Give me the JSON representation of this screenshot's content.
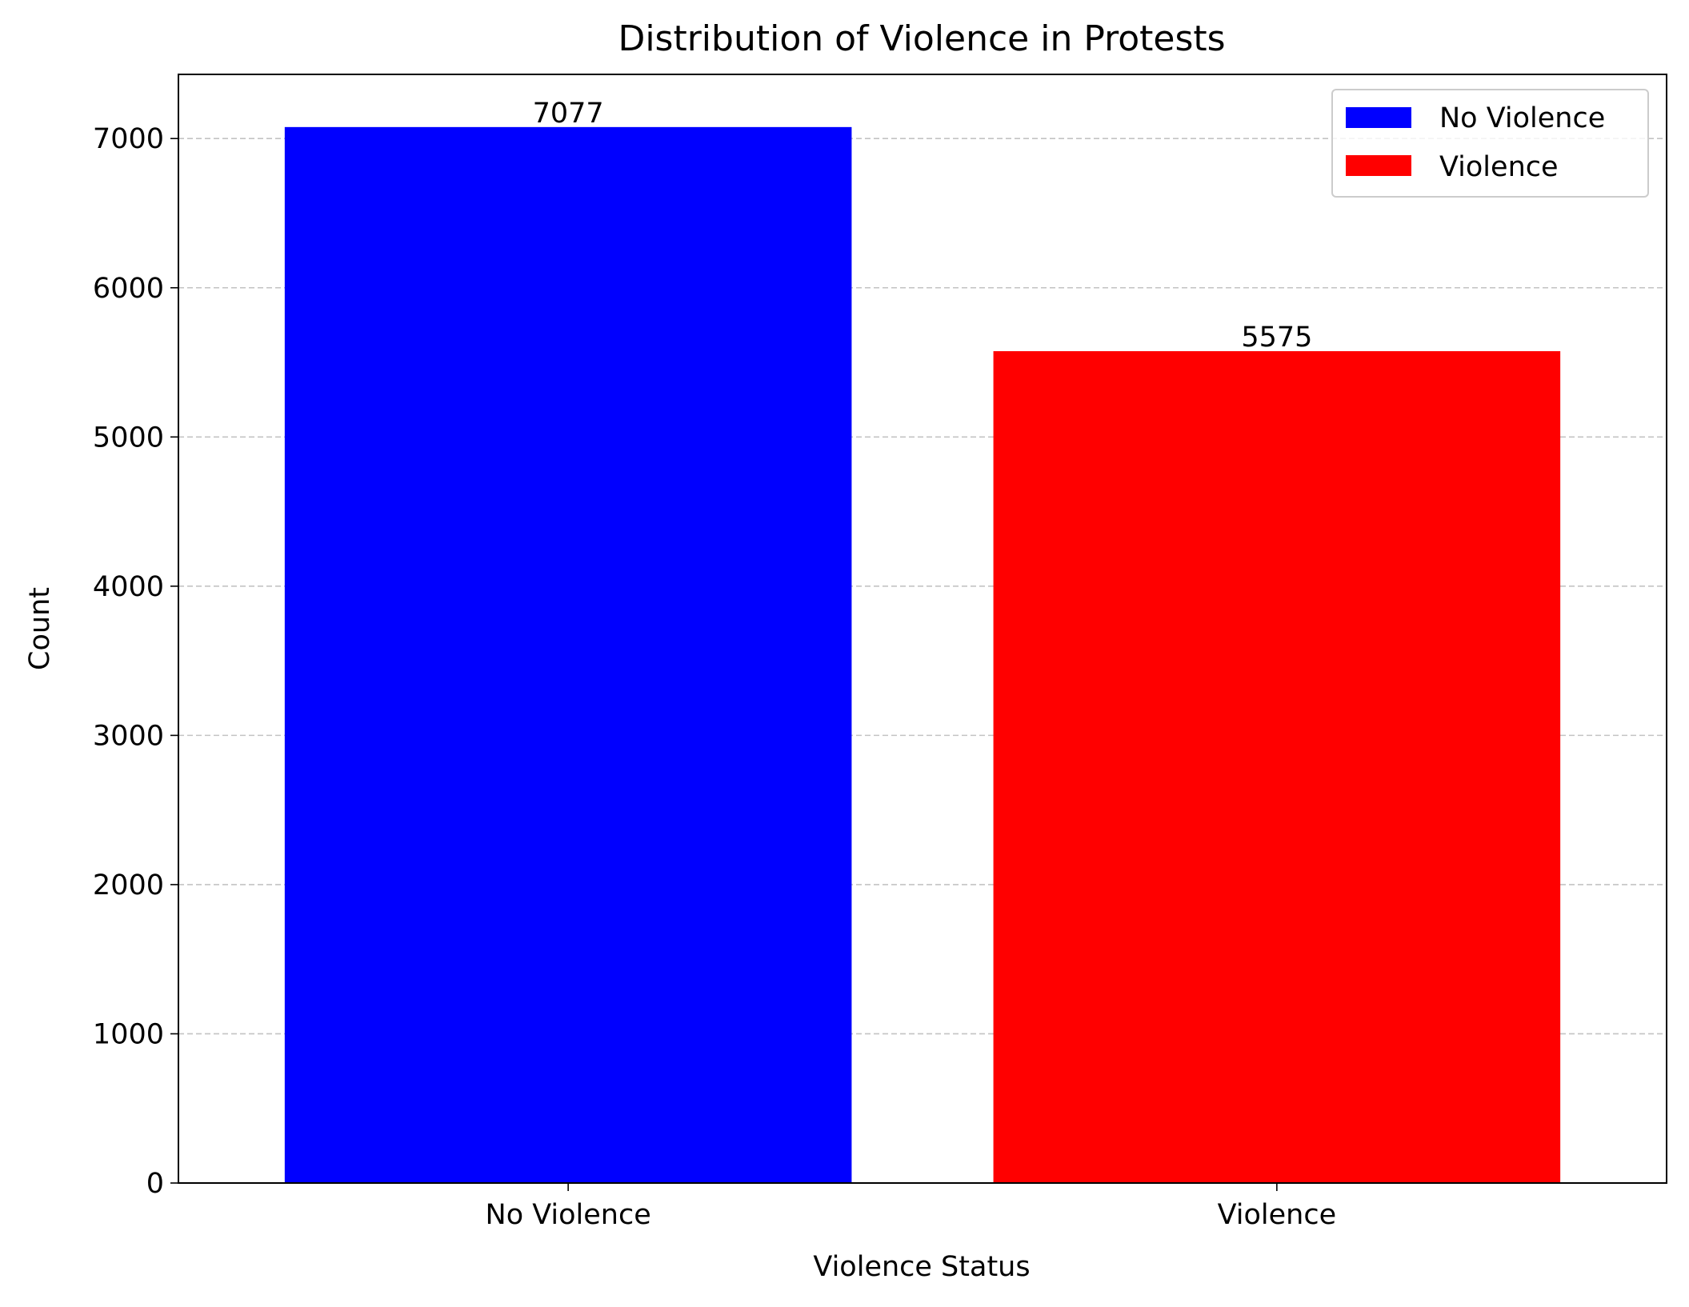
{
  "chart_data": {
    "type": "bar",
    "title": "Distribution of Violence in Protests",
    "xlabel": "Violence Status",
    "ylabel": "Count",
    "categories": [
      "No Violence",
      "Violence"
    ],
    "values": [
      7077,
      5575
    ],
    "colors": [
      "#0000ff",
      "#ff0000"
    ],
    "data_labels": [
      "7077",
      "5575"
    ],
    "ylim": [
      0,
      7430
    ],
    "yticks": [
      0,
      1000,
      2000,
      3000,
      4000,
      5000,
      6000,
      7000
    ],
    "ytick_labels": [
      "0",
      "1000",
      "2000",
      "3000",
      "4000",
      "5000",
      "6000",
      "7000"
    ],
    "grid": "y-dashed",
    "legend": {
      "placement": "top-right",
      "entries": [
        {
          "label": "No Violence",
          "color": "#0000ff"
        },
        {
          "label": "Violence",
          "color": "#ff0000"
        }
      ]
    }
  }
}
